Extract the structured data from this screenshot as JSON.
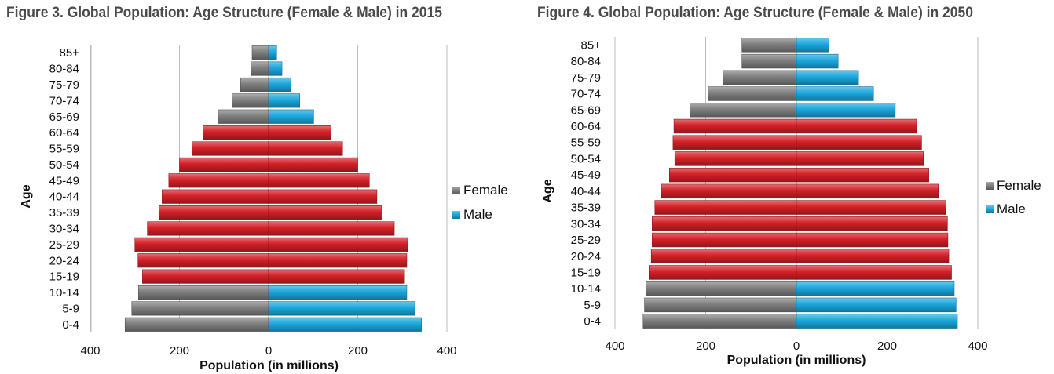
{
  "chart_data": [
    {
      "type": "bar",
      "orientation": "horizontal",
      "title": "Figure 3. Global Population: Age Structure (Female & Male) in 2015",
      "xlabel": "Population (in millions)",
      "ylabel": "Age",
      "xlim": [
        -400,
        400
      ],
      "x_ticks": [
        "400",
        "200",
        "0",
        "200",
        "400"
      ],
      "grid": true,
      "legend_position": "right",
      "categories": [
        "0-4",
        "5-9",
        "10-14",
        "15-19",
        "20-24",
        "25-29",
        "30-34",
        "35-39",
        "40-44",
        "45-49",
        "50-54",
        "55-59",
        "60-64",
        "65-69",
        "70-74",
        "75-79",
        "80-84",
        "85+"
      ],
      "series": [
        {
          "name": "Female",
          "color": "#7f7f7f",
          "values": [
            322,
            307,
            292,
            283,
            293,
            300,
            272,
            246,
            239,
            224,
            200,
            172,
            147,
            113,
            82,
            63,
            40,
            37
          ]
        },
        {
          "name": "Male",
          "color": "#1ba8dd",
          "values": [
            343,
            328,
            310,
            305,
            310,
            312,
            282,
            253,
            243,
            226,
            200,
            166,
            140,
            101,
            70,
            50,
            30,
            18
          ]
        }
      ],
      "highlight": {
        "categories": [
          "15-19",
          "20-24",
          "25-29",
          "30-34",
          "35-39",
          "40-44",
          "45-49",
          "50-54",
          "55-59",
          "60-64"
        ],
        "color": "#d42027"
      }
    },
    {
      "type": "bar",
      "orientation": "horizontal",
      "title": "Figure 4. Global Population: Age Structure (Female & Male) in 2050",
      "xlabel": "Population (in millions)",
      "ylabel": "Age",
      "xlim": [
        -400,
        400
      ],
      "x_ticks": [
        "400",
        "200",
        "0",
        "200",
        "400"
      ],
      "grid": true,
      "legend_position": "right",
      "categories": [
        "0-4",
        "5-9",
        "10-14",
        "15-19",
        "20-24",
        "25-29",
        "30-34",
        "35-39",
        "40-44",
        "45-49",
        "50-54",
        "55-59",
        "60-64",
        "65-69",
        "70-74",
        "75-79",
        "80-84",
        "85+"
      ],
      "series": [
        {
          "name": "Female",
          "color": "#7f7f7f",
          "values": [
            338,
            335,
            332,
            325,
            320,
            318,
            318,
            312,
            298,
            280,
            268,
            272,
            270,
            235,
            195,
            162,
            120,
            120
          ]
        },
        {
          "name": "Male",
          "color": "#1ba8dd",
          "values": [
            355,
            352,
            348,
            342,
            336,
            334,
            333,
            330,
            313,
            292,
            280,
            276,
            265,
            218,
            170,
            137,
            92,
            72
          ]
        }
      ],
      "highlight": {
        "categories": [
          "15-19",
          "20-24",
          "25-29",
          "30-34",
          "35-39",
          "40-44",
          "45-49",
          "50-54",
          "55-59",
          "60-64"
        ],
        "color": "#d42027"
      }
    }
  ]
}
